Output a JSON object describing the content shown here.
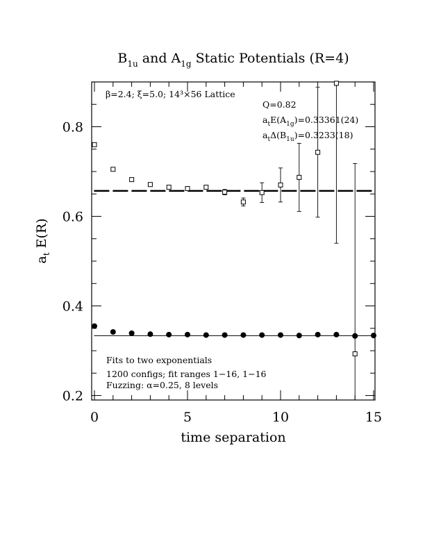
{
  "chart_data": {
    "type": "scatter",
    "title": {
      "parts": [
        "B",
        "1u",
        " and A",
        "1g",
        " Static Potentials (R=4)"
      ]
    },
    "xlabel": "time separation",
    "ylabel": {
      "parts": [
        "a",
        "t",
        " E(R)"
      ]
    },
    "xlim": [
      0,
      15
    ],
    "ylim": [
      0.19,
      0.9
    ],
    "xticks": [
      "0",
      "5",
      "10",
      "15"
    ],
    "yticks": [
      "0.2",
      "0.4",
      "0.6",
      "0.8"
    ],
    "grid": false,
    "annotations": {
      "lattice": "β=2.4; ξ=5.0; 14³×56 Lattice",
      "q": "Q=0.82",
      "a1g_fit": {
        "parts": [
          "a",
          "t",
          "E(A",
          "1g",
          ")=0.33361(24)"
        ]
      },
      "b1u_fit": {
        "parts": [
          "a",
          "t",
          "Δ(B",
          "1u",
          ")=0.3233(18)"
        ]
      },
      "method_1": "Fits to two exponentials",
      "method_2": "1200 configs; fit ranges 1−16, 1−16",
      "method_3": "Fuzzing: α=0.25, 8 levels"
    },
    "series": [
      {
        "marker": "open-square",
        "points": [
          {
            "x": 0,
            "y": 0.76,
            "err": 0.002
          },
          {
            "x": 1,
            "y": 0.705,
            "err": 0.002
          },
          {
            "x": 2,
            "y": 0.682,
            "err": 0.002
          },
          {
            "x": 3,
            "y": 0.671,
            "err": 0.002
          },
          {
            "x": 4,
            "y": 0.665,
            "err": 0.003
          },
          {
            "x": 5,
            "y": 0.662,
            "err": 0.003
          },
          {
            "x": 6,
            "y": 0.665,
            "err": 0.004
          },
          {
            "x": 7,
            "y": 0.654,
            "err": 0.006
          },
          {
            "x": 8,
            "y": 0.632,
            "err": 0.009
          },
          {
            "x": 9,
            "y": 0.653,
            "err": 0.022
          },
          {
            "x": 10,
            "y": 0.67,
            "err": 0.038
          },
          {
            "x": 11,
            "y": 0.687,
            "err": 0.076
          },
          {
            "x": 12,
            "y": 0.743,
            "err": 0.145
          },
          {
            "x": 13,
            "y": 0.897,
            "err": 0.357
          },
          {
            "x": 14,
            "y": 0.293,
            "err": 0.425
          }
        ],
        "fit": {
          "value": 0.6569,
          "x_range": [
            0.5,
            15
          ],
          "style": "dashed"
        }
      },
      {
        "marker": "filled-circle",
        "points": [
          {
            "x": 0,
            "y": 0.355
          },
          {
            "x": 1,
            "y": 0.342
          },
          {
            "x": 2,
            "y": 0.339
          },
          {
            "x": 3,
            "y": 0.337
          },
          {
            "x": 4,
            "y": 0.336
          },
          {
            "x": 5,
            "y": 0.336
          },
          {
            "x": 6,
            "y": 0.335
          },
          {
            "x": 7,
            "y": 0.335
          },
          {
            "x": 8,
            "y": 0.335
          },
          {
            "x": 9,
            "y": 0.335
          },
          {
            "x": 10,
            "y": 0.335
          },
          {
            "x": 11,
            "y": 0.334
          },
          {
            "x": 12,
            "y": 0.336
          },
          {
            "x": 13,
            "y": 0.336
          },
          {
            "x": 14,
            "y": 0.333
          },
          {
            "x": 15,
            "y": 0.334
          }
        ],
        "fit": {
          "value": 0.33361,
          "x_range": [
            0.5,
            15
          ],
          "style": "solid"
        }
      }
    ]
  }
}
